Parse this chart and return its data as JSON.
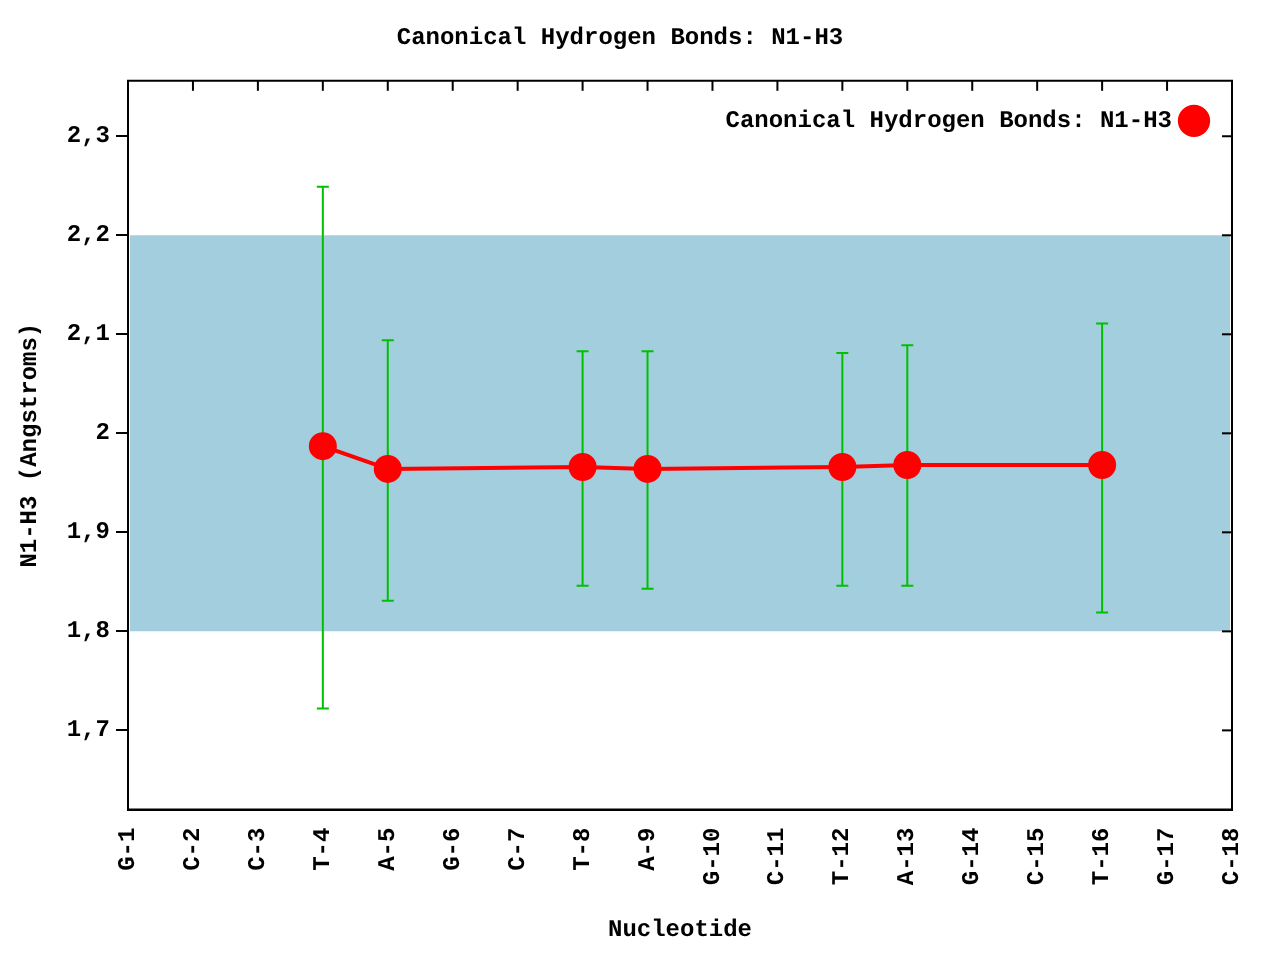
{
  "chart_data": {
    "type": "line",
    "title": "Canonical Hydrogen Bonds: N1-H3",
    "xlabel": "Nucleotide",
    "ylabel": "N1-H3 (Angstroms)",
    "categories": [
      "G-1",
      "C-2",
      "C-3",
      "T-4",
      "A-5",
      "G-6",
      "C-7",
      "T-8",
      "A-9",
      "G-10",
      "C-11",
      "T-12",
      "A-13",
      "G-14",
      "C-15",
      "T-16",
      "G-17",
      "C-18"
    ],
    "series": [
      {
        "name": "Canonical Hydrogen Bonds: N1-H3",
        "color": "#ff0000",
        "values": [
          null,
          null,
          null,
          1.987,
          1.964,
          null,
          null,
          1.966,
          1.964,
          null,
          null,
          1.966,
          1.968,
          null,
          null,
          1.968,
          null,
          null
        ],
        "errors": [
          null,
          null,
          null,
          [
            1.722,
            2.249
          ],
          [
            1.831,
            2.094
          ],
          null,
          null,
          [
            1.846,
            2.083
          ],
          [
            1.843,
            2.083
          ],
          null,
          null,
          [
            1.846,
            2.081
          ],
          [
            1.846,
            2.089
          ],
          null,
          null,
          [
            1.819,
            2.111
          ],
          null,
          null
        ]
      }
    ],
    "ylim": [
      1.62,
      2.356
    ],
    "yticks": [
      {
        "value": 1.7,
        "label": "1,7"
      },
      {
        "value": 1.8,
        "label": "1,8"
      },
      {
        "value": 1.9,
        "label": "1,9"
      },
      2,
      {
        "value": 2.1,
        "label": "2,1"
      },
      {
        "value": 2.2,
        "label": "2,2"
      },
      {
        "value": 2.3,
        "label": "2,3"
      }
    ],
    "bands": [
      {
        "axis": "y",
        "from": 1.8,
        "to": 2.2,
        "color": "#a2cede"
      }
    ],
    "grid": false,
    "legend": "top right",
    "marker": "circle",
    "line_style": "solid"
  }
}
